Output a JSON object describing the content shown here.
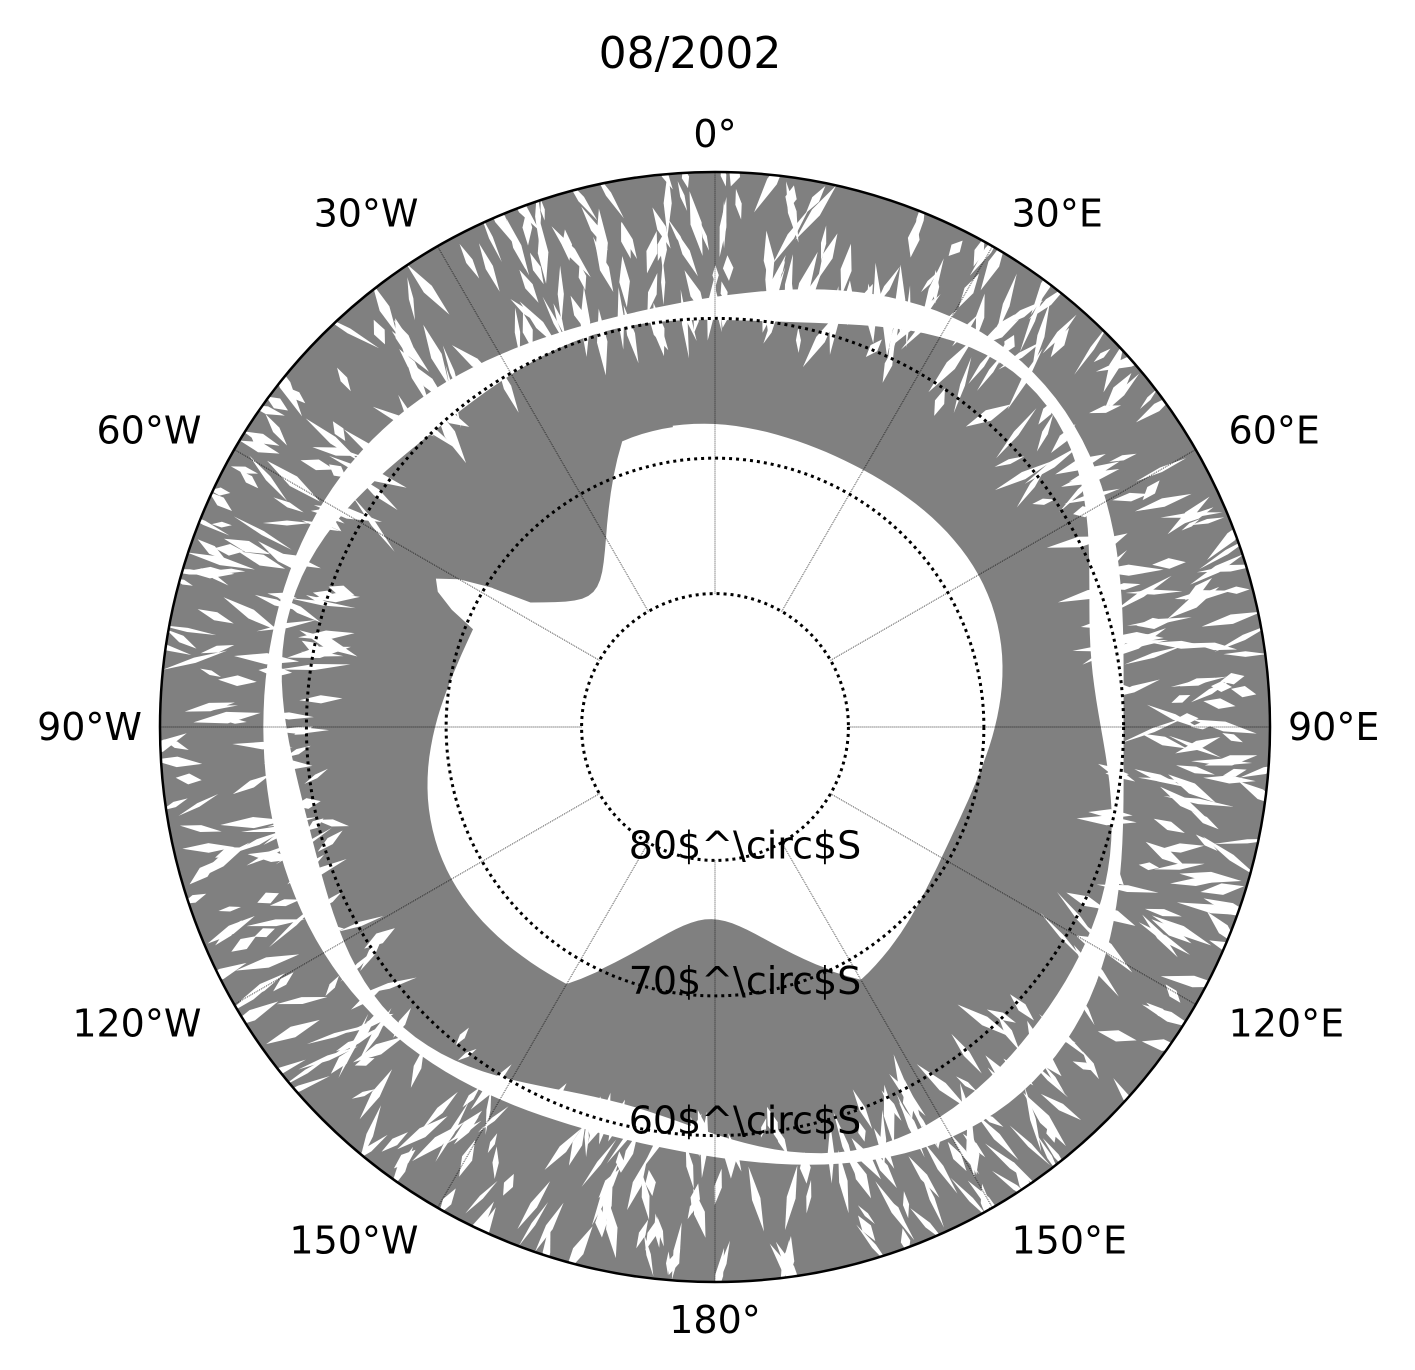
{
  "title": "08/2002",
  "projection": "south-polar-stereographic",
  "map_extent": {
    "outer_lat": -50,
    "center_lat": -90
  },
  "colors": {
    "data_fill": "#808080",
    "background": "#ffffff",
    "grid": "#000000",
    "land_and_gaps": "#ffffff"
  },
  "meridians": [
    {
      "lon": 0,
      "label": "0°"
    },
    {
      "lon": 30,
      "label": "30°E"
    },
    {
      "lon": 60,
      "label": "60°E"
    },
    {
      "lon": 90,
      "label": "90°E"
    },
    {
      "lon": 120,
      "label": "120°E"
    },
    {
      "lon": 150,
      "label": "150°E"
    },
    {
      "lon": 180,
      "label": "180°"
    },
    {
      "lon": -150,
      "label": "150°W"
    },
    {
      "lon": -120,
      "label": "120°W"
    },
    {
      "lon": -90,
      "label": "90°W"
    },
    {
      "lon": -60,
      "label": "60°W"
    },
    {
      "lon": -30,
      "label": "30°W"
    }
  ],
  "parallels": [
    {
      "lat": -80,
      "label": "80$^\\circ$S"
    },
    {
      "lat": -70,
      "label": "70$^\\circ$S"
    },
    {
      "lat": -60,
      "label": "60$^\\circ$S"
    }
  ],
  "parallel_labels_rendered": [
    "80$^\\circ$S",
    "70$^\\circ$S",
    "60$^\\circ$S"
  ],
  "data_layer": "gridded observations (gray) over Southern Ocean; Antarctic continent shown white"
}
